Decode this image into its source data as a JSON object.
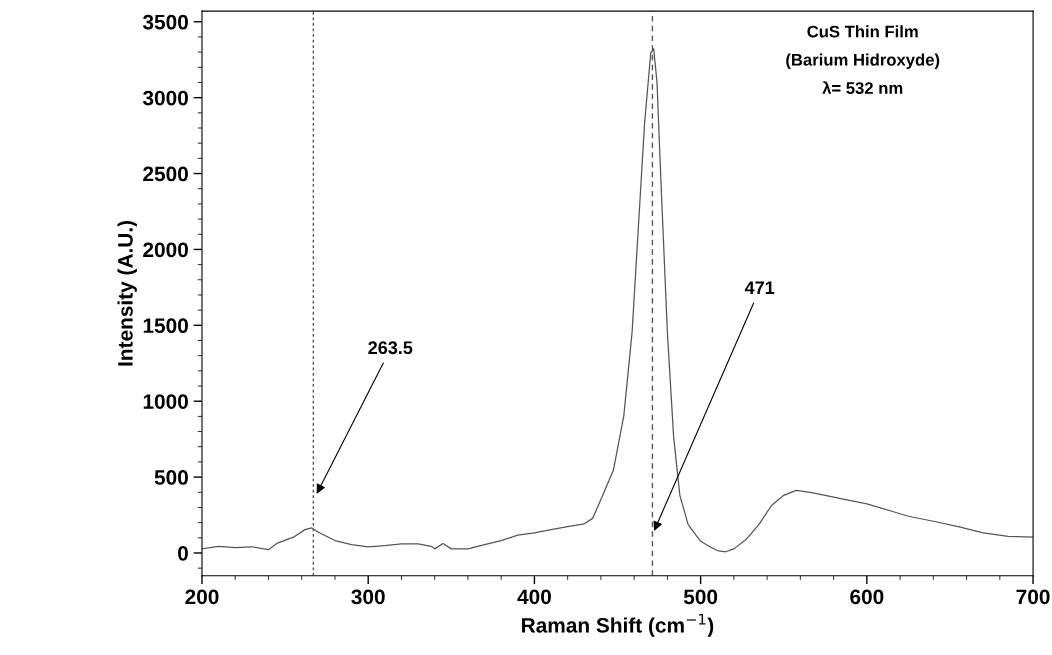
{
  "chart_data": {
    "type": "line",
    "xlabel": "Raman Shift (cm$^{−1}$)",
    "ylabel": "Intensity (A.U.)",
    "x": [
      200,
      210,
      220,
      230,
      240,
      245,
      255,
      262,
      266,
      270,
      280,
      290,
      300,
      310,
      320,
      330,
      338,
      340,
      345,
      350,
      360,
      370,
      380,
      390,
      400,
      410,
      420,
      430,
      435,
      440,
      447.5,
      453.75,
      458.75,
      462.5,
      466.25,
      470,
      471.75,
      473.75,
      476.25,
      480,
      483.75,
      487.5,
      492.5,
      500,
      505,
      510,
      515,
      520,
      527.5,
      535,
      542.5,
      550,
      557.5,
      565,
      575,
      585,
      600,
      615,
      625,
      640,
      655,
      670,
      685,
      700
    ],
    "series": [
      {
        "color": "#555555",
        "values": [
          27,
          44,
          36,
          41,
          22,
          63,
          104,
          154,
          165,
          137,
          82,
          55,
          41,
          49,
          60,
          60,
          44,
          27,
          63,
          27,
          27,
          55,
          82,
          118,
          132,
          154,
          173,
          192,
          228,
          352,
          545,
          902,
          1452,
          2140,
          2827,
          3295,
          3322,
          3102,
          2415,
          1452,
          765,
          380,
          187,
          77,
          44,
          16,
          8,
          27,
          91,
          187,
          311,
          380,
          412,
          401,
          380,
          357,
          324,
          275,
          242,
          209,
          173,
          132,
          110,
          104
        ]
      }
    ],
    "xlim": [
      200,
      700
    ],
    "xticks": [
      200,
      300,
      400,
      500,
      600,
      700
    ],
    "ylim": [
      -150,
      3570
    ],
    "yticks": [
      0,
      500,
      1000,
      1500,
      2000,
      2500,
      3000,
      3500
    ],
    "ref_lines": [
      {
        "axis": "x",
        "value": 267,
        "line_style": "dotted",
        "color": "#555555"
      },
      {
        "axis": "x",
        "value": 471,
        "line_style": "dashed",
        "color": "#555555"
      }
    ],
    "annotations": [
      "CuS Thin Film",
      "(Barium Hidroxyde)",
      "λ= 532 nm",
      {
        "text": "263.5",
        "x": 269,
        "y": 390
      },
      {
        "text": "471",
        "x": 472,
        "y": 145
      }
    ],
    "grid": false,
    "legend": false,
    "marker": "none",
    "line_style": "solid"
  }
}
